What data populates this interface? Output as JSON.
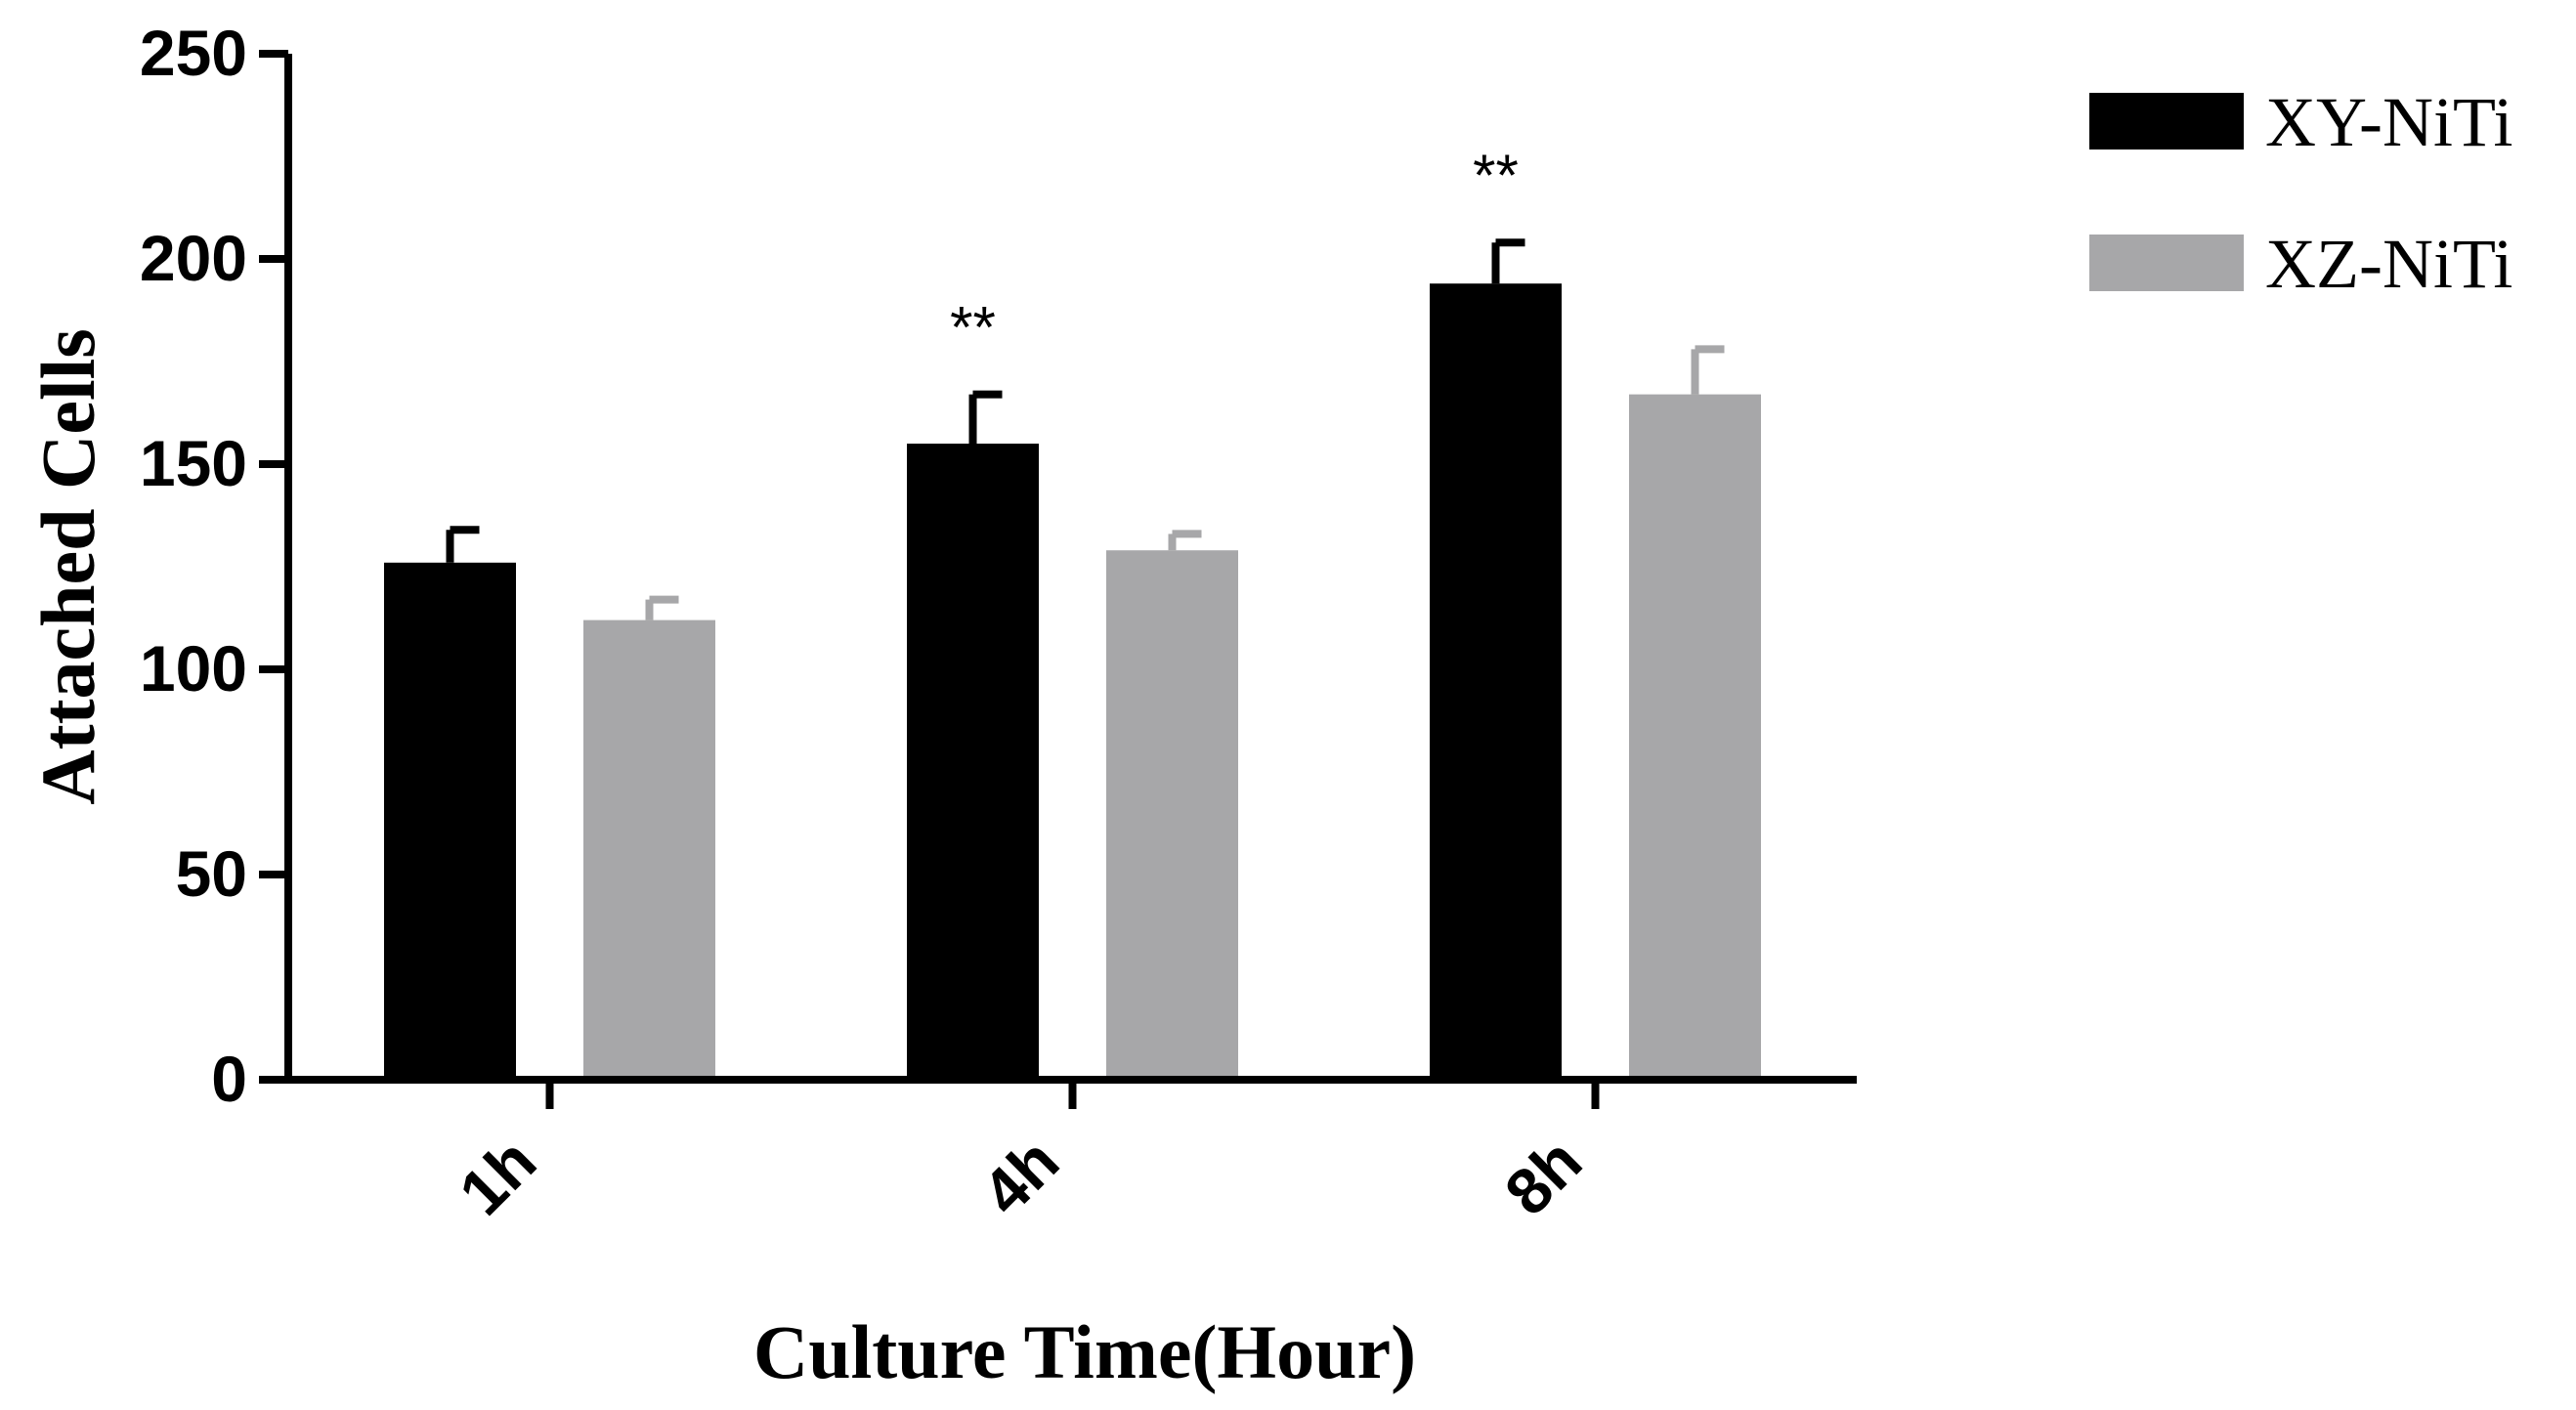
{
  "chart_data": {
    "type": "bar",
    "title": "",
    "xlabel": "Culture Time(Hour)",
    "ylabel": "Attached Cells",
    "categories": [
      "1h",
      "4h",
      "8h"
    ],
    "ylim": [
      0,
      250
    ],
    "yticks": [
      "0",
      "50",
      "100",
      "150",
      "200",
      "250"
    ],
    "grid": false,
    "legend_position": "top-right",
    "series": [
      {
        "name": "XY-NiTi",
        "color": "#000000",
        "values": [
          126,
          155,
          194
        ],
        "errors": [
          8,
          12,
          10
        ]
      },
      {
        "name": "XZ-NiTi",
        "color": "#a7a7a9",
        "values": [
          112,
          129,
          167
        ],
        "errors": [
          5,
          4,
          11
        ]
      }
    ],
    "annotations": [
      {
        "text": "**",
        "category": "4h",
        "series": "XY-NiTi"
      },
      {
        "text": "**",
        "category": "8h",
        "series": "XY-NiTi"
      }
    ]
  }
}
